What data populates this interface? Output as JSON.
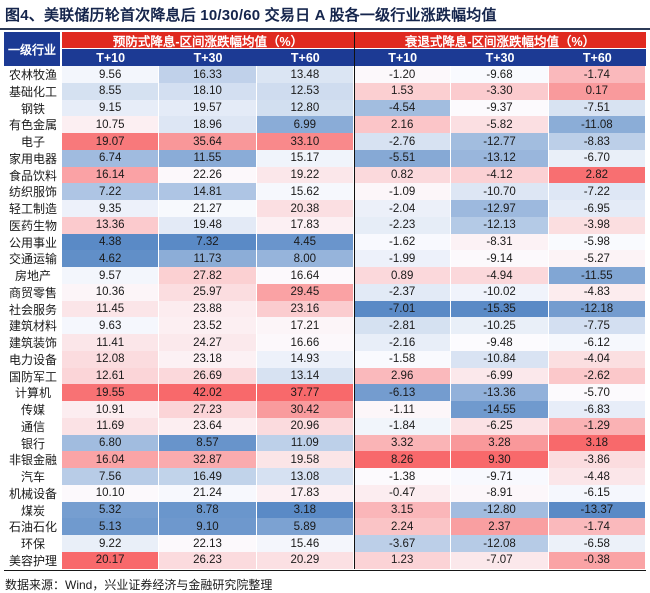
{
  "title": "图4、美联储历轮首次降息后 10/30/60 交易日 A 股各一级行业涨跌幅均值",
  "footer": "数据来源：Wind，兴业证券经济与金融研究院整理",
  "colors": {
    "header_red": "#E02A20",
    "header_navy": "#1C3A94",
    "title_color": "#15254C",
    "rule_color": "#2C3A57",
    "divider_color": "#111111",
    "text_color": "#1A1A1A",
    "scale_min_color": "#5A8AC6",
    "scale_mid_color": "#FCFCFF",
    "scale_max_color": "#F8696B"
  },
  "chart_data": {
    "type": "heatmap",
    "row_header_label": "一级行业",
    "col_groups": [
      "预防式降息-区间涨跌幅均值（%）",
      "衰退式降息-区间涨跌幅均值（%）"
    ],
    "sub_cols": [
      "T+10",
      "T+30",
      "T+60"
    ],
    "color_scale": "per-column blue(min) - white(median) - red(max)",
    "categories": [
      "农林牧渔",
      "基础化工",
      "钢铁",
      "有色金属",
      "电子",
      "家用电器",
      "食品饮料",
      "纺织服饰",
      "轻工制造",
      "医药生物",
      "公用事业",
      "交通运输",
      "房地产",
      "商贸零售",
      "社会服务",
      "建筑材料",
      "建筑装饰",
      "电力设备",
      "国防军工",
      "计算机",
      "传媒",
      "通信",
      "银行",
      "非银金融",
      "汽车",
      "机械设备",
      "煤炭",
      "石油石化",
      "环保",
      "美容护理"
    ],
    "series": [
      {
        "name": "预防式降息 T+10",
        "values": [
          9.56,
          8.55,
          9.15,
          10.75,
          19.07,
          6.74,
          16.14,
          7.22,
          9.35,
          13.36,
          4.38,
          4.62,
          9.57,
          10.36,
          11.45,
          9.63,
          11.41,
          12.08,
          12.61,
          19.55,
          10.91,
          11.69,
          6.8,
          16.04,
          7.56,
          10.1,
          5.32,
          5.13,
          9.22,
          20.17
        ]
      },
      {
        "name": "预防式降息 T+30",
        "values": [
          16.33,
          18.1,
          19.57,
          18.96,
          35.64,
          11.55,
          22.26,
          14.81,
          21.27,
          19.48,
          7.32,
          11.73,
          27.82,
          25.97,
          23.88,
          23.52,
          24.27,
          23.18,
          26.69,
          42.02,
          27.23,
          23.64,
          8.57,
          32.87,
          16.49,
          21.24,
          8.78,
          9.1,
          22.13,
          26.23
        ]
      },
      {
        "name": "预防式降息 T+60",
        "values": [
          13.48,
          12.53,
          12.8,
          6.99,
          33.1,
          15.17,
          19.22,
          15.62,
          20.38,
          17.83,
          4.45,
          8.0,
          16.64,
          29.45,
          23.16,
          17.21,
          16.66,
          14.93,
          13.14,
          37.77,
          30.42,
          20.96,
          11.09,
          19.58,
          13.08,
          17.83,
          3.18,
          5.89,
          15.46,
          20.29
        ]
      },
      {
        "name": "衰退式降息 T+10",
        "values": [
          -1.2,
          1.53,
          -4.54,
          2.16,
          -2.76,
          -5.51,
          0.82,
          -1.09,
          -2.04,
          -2.23,
          -1.62,
          -1.99,
          0.89,
          -2.37,
          -7.01,
          -2.81,
          -2.16,
          -1.58,
          2.96,
          -6.13,
          -1.11,
          -1.84,
          3.32,
          8.26,
          -1.38,
          -0.47,
          3.15,
          2.24,
          -3.67,
          1.23
        ]
      },
      {
        "name": "衰退式降息 T+30",
        "values": [
          -9.68,
          -3.3,
          -9.37,
          -5.82,
          -12.77,
          -13.12,
          -4.12,
          -10.7,
          -12.97,
          -12.13,
          -8.31,
          -9.14,
          -4.94,
          -10.02,
          -15.35,
          -10.25,
          -9.48,
          -10.84,
          -6.99,
          -13.36,
          -14.55,
          -6.25,
          3.28,
          9.3,
          -9.71,
          -8.91,
          -12.8,
          2.37,
          -12.08,
          -7.07
        ]
      },
      {
        "name": "衰退式降息 T+60",
        "values": [
          -1.74,
          0.17,
          -7.51,
          -11.08,
          -8.83,
          -6.7,
          2.82,
          -7.22,
          -6.95,
          -3.98,
          -5.98,
          -5.27,
          -11.55,
          -4.83,
          -12.18,
          -7.75,
          -6.12,
          -4.04,
          -2.62,
          -5.7,
          -6.83,
          -1.29,
          3.18,
          -3.86,
          -4.48,
          -6.15,
          -13.37,
          -1.74,
          -6.58,
          -0.38
        ]
      }
    ]
  }
}
